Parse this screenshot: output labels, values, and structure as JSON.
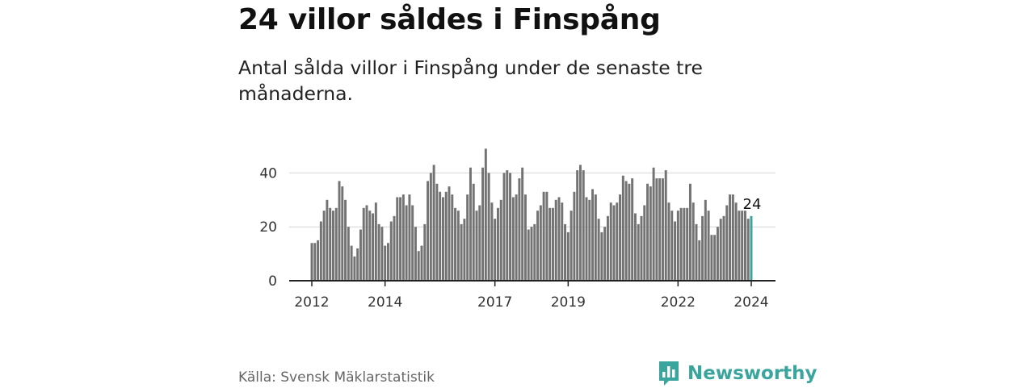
{
  "header": {
    "title": "24 villor såldes i Finspång",
    "subtitle": "Antal sålda villor i Finspång under de senaste tre månaderna."
  },
  "footer": {
    "source": "Källa: Svensk Mäklarstatistik",
    "brand": "Newsworthy"
  },
  "colors": {
    "bar": "#737373",
    "highlight": "#3aa59d",
    "grid": "#d6d6d6",
    "axis": "#222222"
  },
  "chart_data": {
    "type": "bar",
    "title": "Antal sålda villor i Finspång under de senaste tre månaderna.",
    "xlabel": "",
    "ylabel": "",
    "ylim": [
      0,
      50
    ],
    "yticks": [
      0,
      20,
      40
    ],
    "xtick_labels": [
      "2012",
      "2014",
      "2017",
      "2019",
      "2022",
      "2024"
    ],
    "x_start": "2012-01",
    "x_end": "2024-01",
    "values": [
      14,
      14,
      15,
      22,
      26,
      30,
      27,
      26,
      27,
      37,
      35,
      30,
      20,
      13,
      9,
      12,
      19,
      27,
      28,
      26,
      25,
      29,
      21,
      20,
      13,
      14,
      22,
      24,
      31,
      31,
      32,
      28,
      32,
      28,
      20,
      11,
      13,
      21,
      37,
      40,
      43,
      36,
      33,
      31,
      33,
      35,
      32,
      27,
      26,
      21,
      23,
      32,
      42,
      36,
      26,
      28,
      42,
      49,
      40,
      29,
      23,
      27,
      30,
      40,
      41,
      40,
      31,
      32,
      38,
      42,
      32,
      19,
      20,
      21,
      26,
      28,
      33,
      33,
      27,
      27,
      30,
      31,
      29,
      21,
      18,
      26,
      33,
      41,
      43,
      41,
      31,
      30,
      34,
      32,
      23,
      18,
      20,
      24,
      29,
      28,
      29,
      32,
      39,
      37,
      36,
      38,
      25,
      21,
      24,
      28,
      36,
      35,
      42,
      38,
      38,
      38,
      41,
      29,
      26,
      22,
      26,
      27,
      27,
      27,
      36,
      29,
      21,
      15,
      24,
      30,
      26,
      17,
      17,
      20,
      23,
      24,
      28,
      32,
      32,
      29,
      26,
      26,
      26,
      23,
      24
    ],
    "highlight_last": true,
    "annotation": {
      "label": "24",
      "value": 24
    }
  }
}
